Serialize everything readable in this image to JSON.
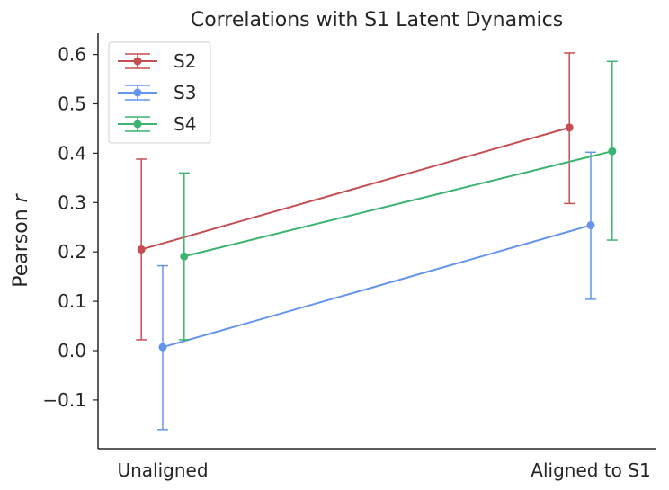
{
  "chart_data": {
    "type": "line",
    "title": "Correlations with S1 Latent Dynamics",
    "xlabel": "",
    "ylabel": "Pearson",
    "ylabel_italic": "r",
    "categories": [
      "Unaligned",
      "Aligned to S1"
    ],
    "ylim": [
      -0.2,
      0.64
    ],
    "yticks": [
      -0.1,
      0.0,
      0.1,
      0.2,
      0.3,
      0.4,
      0.5,
      0.6
    ],
    "ytick_labels": [
      "−0.1",
      "0.0",
      "0.1",
      "0.2",
      "0.3",
      "0.4",
      "0.5",
      "0.6"
    ],
    "grid": false,
    "legend_position": "top-left",
    "series": [
      {
        "name": "S2",
        "color": "#c44e52",
        "values": [
          0.205,
          0.452
        ],
        "err_low": [
          0.022,
          0.298
        ],
        "err_high": [
          0.388,
          0.603
        ]
      },
      {
        "name": "S3",
        "color": "#6495ed",
        "values": [
          0.007,
          0.254
        ],
        "err_low": [
          -0.16,
          0.104
        ],
        "err_high": [
          0.172,
          0.402
        ]
      },
      {
        "name": "S4",
        "color": "#3cb371",
        "values": [
          0.191,
          0.404
        ],
        "err_low": [
          0.022,
          0.224
        ],
        "err_high": [
          0.36,
          0.586
        ]
      }
    ]
  }
}
